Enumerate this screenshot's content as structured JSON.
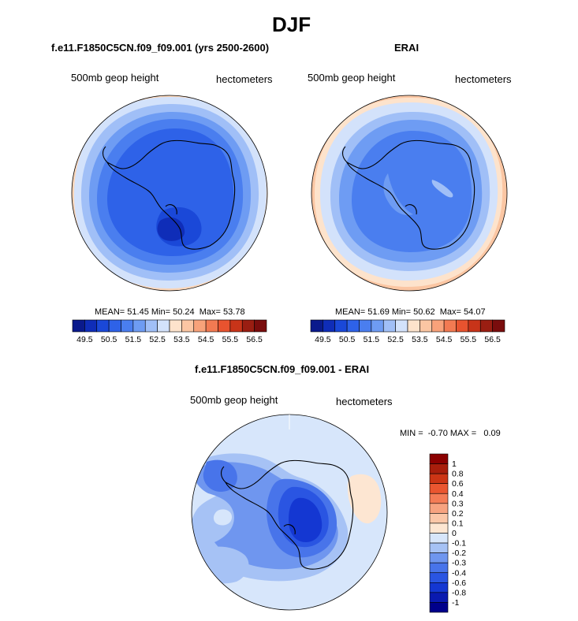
{
  "page": {
    "title": "DJF"
  },
  "panels": [
    {
      "title": "f.e11.F1850C5CN.f09_f09.001 (yrs 2500-2600)",
      "left_label": "500mb geop height",
      "right_label": "hectometers",
      "stats": {
        "mean_label": "MEAN=",
        "mean": "51.45",
        "min_label": "Min=",
        "min": "50.24",
        "max_label": "Max=",
        "max": "53.78"
      }
    },
    {
      "title": "ERAI",
      "left_label": "500mb geop height",
      "right_label": "hectometers",
      "stats": {
        "mean_label": "MEAN=",
        "mean": "51.69",
        "min_label": "Min=",
        "min": "50.62",
        "max_label": "Max=",
        "max": "54.07"
      }
    },
    {
      "title": "f.e11.F1850C5CN.f09_f09.001 - ERAI",
      "left_label": "500mb geop height",
      "right_label": "hectometers",
      "minmax_text": "MIN =  -0.70 MAX =   0.09"
    }
  ],
  "chart_data": [
    {
      "type": "heatmap",
      "title": "f.e11.F1850C5CN.f09_f09.001 (yrs 2500-2600)",
      "projection": "south polar stereographic",
      "variable": "500mb geop height",
      "units": "hectometers",
      "mean": 51.45,
      "min": 50.24,
      "max": 53.78,
      "contour_levels": [
        49.5,
        49.75,
        50.0,
        50.25,
        50.5,
        50.75,
        51.0,
        51.25,
        51.5,
        51.75,
        52.0,
        52.25,
        52.5,
        52.75,
        53.0,
        53.25,
        53.5,
        53.75,
        54.0,
        54.25,
        54.5,
        54.75,
        55.0,
        55.25,
        55.5,
        55.75,
        56.0,
        56.25,
        56.5
      ],
      "colorbar_labels": [
        "49.5",
        "50.5",
        "51.5",
        "52.5",
        "53.5",
        "54.5",
        "55.5",
        "56.5"
      ]
    },
    {
      "type": "heatmap",
      "title": "ERAI",
      "projection": "south polar stereographic",
      "variable": "500mb geop height",
      "units": "hectometers",
      "mean": 51.69,
      "min": 50.62,
      "max": 54.07,
      "colorbar_labels": [
        "49.5",
        "50.5",
        "51.5",
        "52.5",
        "53.5",
        "54.5",
        "55.5",
        "56.5"
      ]
    },
    {
      "type": "heatmap",
      "title": "f.e11.F1850C5CN.f09_f09.001 - ERAI",
      "projection": "south polar stereographic",
      "variable": "500mb geop height",
      "units": "hectometers",
      "min": -0.7,
      "max": 0.09,
      "colorbar_labels": [
        "1",
        "0.8",
        "0.6",
        "0.4",
        "0.3",
        "0.2",
        "0.1",
        "0",
        "-0.1",
        "-0.2",
        "-0.3",
        "-0.4",
        "-0.6",
        "-0.8",
        "-1"
      ]
    }
  ],
  "colors": {
    "abs_scale": [
      "#0a1a8c",
      "#0f2db8",
      "#1a48d8",
      "#2e62e8",
      "#4a7eef",
      "#6e9cf3",
      "#a0bff7",
      "#d3e2fb",
      "#fde3cc",
      "#fbc6a3",
      "#f8a27a",
      "#f27a52",
      "#e8532f",
      "#c83419",
      "#9a1e12",
      "#7a0d0d"
    ],
    "diff_scale": [
      "#00008b",
      "#0a1ab0",
      "#1437d2",
      "#2a55e2",
      "#4874ea",
      "#6f96ef",
      "#a6c2f5",
      "#d7e6fb",
      "#fde6d2",
      "#fbc7a8",
      "#f7a380",
      "#f47c56",
      "#ea5630",
      "#cc3515",
      "#a81e0c",
      "#8b0000"
    ],
    "coast": "#000000"
  }
}
